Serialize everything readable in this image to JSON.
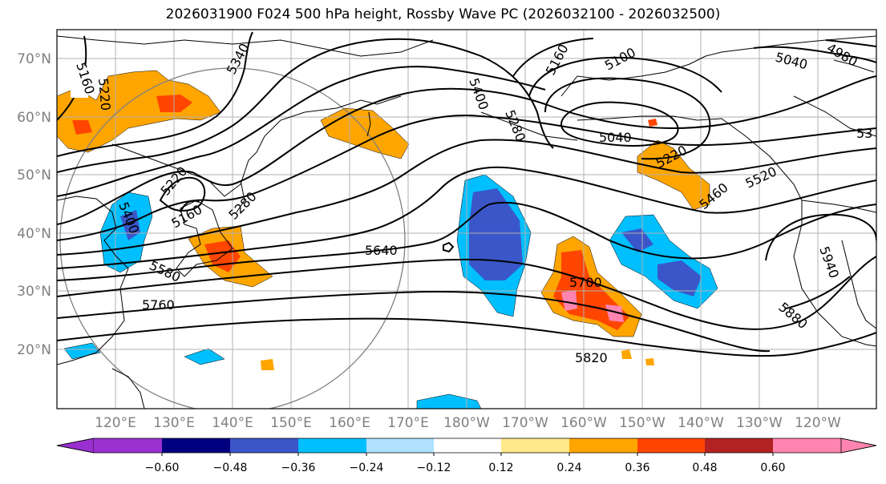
{
  "title": "2026031900 F024 500 hPa height, Rossby Wave PC (2026032100 - 2026032500)",
  "lat_labels": [
    "20°N",
    "30°N",
    "40°N",
    "50°N",
    "60°N",
    "70°N"
  ],
  "lon_labels": [
    "120°E",
    "130°E",
    "140°E",
    "150°E",
    "160°E",
    "170°E",
    "180°W",
    "170°W",
    "160°W",
    "150°W",
    "140°W",
    "130°W",
    "120°W"
  ],
  "contour_labels": [
    "5160",
    "5220",
    "5340",
    "5400",
    "5160",
    "5100",
    "5040",
    "4980",
    "5040",
    "5280",
    "5220",
    "5220",
    "5460",
    "5520",
    "5400",
    "5160",
    "5280",
    "5580",
    "5640",
    "5700",
    "5760",
    "5820",
    "5880",
    "5940",
    "53"
  ],
  "colorbar": {
    "ticks": [
      "−0.60",
      "−0.48",
      "−0.36",
      "−0.24",
      "−0.12",
      "0.12",
      "0.24",
      "0.36",
      "0.48",
      "0.60"
    ],
    "colors": [
      "#9b30d0",
      "#000080",
      "#3a56c8",
      "#00bfff",
      "#b0e2ff",
      "#ffffff",
      "#ffe98a",
      "#ffa500",
      "#ff4500",
      "#b22222",
      "#ff85b0"
    ]
  },
  "colors": {
    "contour": "#000000",
    "grid": "#b0b0b0",
    "coast": "#000000",
    "frame": "#000000",
    "circle": "#808080"
  }
}
